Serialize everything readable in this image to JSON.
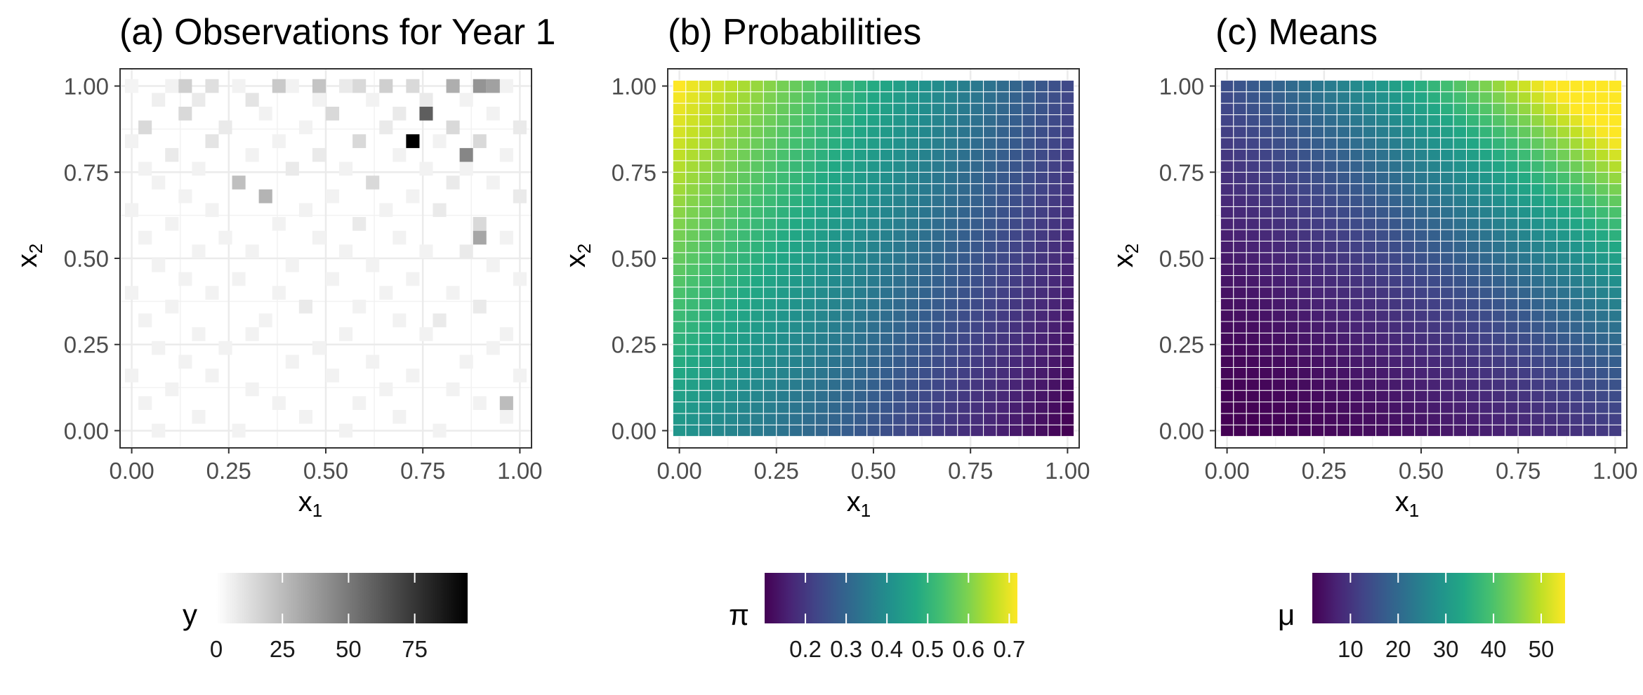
{
  "chart_data": [
    {
      "type": "heatmap",
      "title": "(a) Observations for Year 1",
      "xlabel": "x",
      "xlabel_sub": "1",
      "ylabel": "x",
      "ylabel_sub": "2",
      "xticks": [
        "0.00",
        "0.25",
        "0.50",
        "0.75",
        "1.00"
      ],
      "yticks": [
        "0.00",
        "0.25",
        "0.50",
        "0.75",
        "1.00"
      ],
      "xlim": [
        -0.03,
        1.03
      ],
      "ylim": [
        -0.05,
        1.05
      ],
      "grid": true,
      "legend": {
        "title": "y",
        "ticks": [
          "0",
          "25",
          "50",
          "75"
        ],
        "tick_values": [
          0,
          25,
          50,
          75
        ],
        "range": [
          0,
          95
        ],
        "colormap": "white-to-black",
        "position": "bottom"
      },
      "grid_size": 30,
      "cells": [
        [
          0,
          25,
          "a"
        ],
        [
          3,
          25,
          "f"
        ],
        [
          8,
          25,
          "f"
        ],
        [
          12,
          25,
          "f"
        ],
        [
          16,
          25,
          "e"
        ],
        [
          17,
          25,
          "d"
        ],
        [
          21,
          25,
          "d"
        ],
        [
          28,
          25,
          "f"
        ],
        [
          2,
          24,
          "b"
        ],
        [
          5,
          24,
          "e"
        ],
        [
          9,
          24,
          "c"
        ],
        [
          14,
          24,
          "f"
        ],
        [
          18,
          24,
          "f"
        ],
        [
          22,
          24,
          "e"
        ],
        [
          25,
          24,
          "f"
        ],
        [
          4,
          23,
          "d"
        ],
        [
          10,
          23,
          "f"
        ],
        [
          15,
          23,
          "d"
        ],
        [
          20,
          23,
          "e"
        ],
        [
          27,
          23,
          "f"
        ],
        [
          1,
          22,
          "d"
        ],
        [
          7,
          22,
          "e"
        ],
        [
          13,
          22,
          "f"
        ],
        [
          19,
          22,
          "e"
        ],
        [
          24,
          22,
          "d"
        ],
        [
          29,
          22,
          "e"
        ],
        [
          0,
          21,
          "f"
        ],
        [
          6,
          21,
          "c"
        ],
        [
          11,
          21,
          "f"
        ],
        [
          17,
          21,
          "d"
        ],
        [
          23,
          21,
          "f"
        ],
        [
          26,
          21,
          "d"
        ],
        [
          3,
          20,
          "e"
        ],
        [
          9,
          20,
          "f"
        ],
        [
          14,
          20,
          "e"
        ],
        [
          20,
          20,
          "f"
        ],
        [
          28,
          20,
          "f"
        ],
        [
          1,
          19,
          "f"
        ],
        [
          5,
          19,
          "f"
        ],
        [
          12,
          19,
          "e"
        ],
        [
          16,
          19,
          "f"
        ],
        [
          22,
          19,
          "f"
        ],
        [
          25,
          19,
          "f"
        ],
        [
          2,
          18,
          "f"
        ],
        [
          8,
          18,
          "f"
        ],
        [
          18,
          18,
          "d"
        ],
        [
          24,
          18,
          "e"
        ],
        [
          27,
          18,
          "f"
        ],
        [
          4,
          17,
          "f"
        ],
        [
          10,
          17,
          "d"
        ],
        [
          15,
          17,
          "f"
        ],
        [
          21,
          17,
          "f"
        ],
        [
          29,
          17,
          "e"
        ],
        [
          0,
          16,
          "f"
        ],
        [
          6,
          16,
          "f"
        ],
        [
          13,
          16,
          "f"
        ],
        [
          19,
          16,
          "f"
        ],
        [
          23,
          16,
          "e"
        ],
        [
          3,
          15,
          "f"
        ],
        [
          11,
          15,
          "f"
        ],
        [
          17,
          15,
          "e"
        ],
        [
          26,
          15,
          "d"
        ],
        [
          1,
          14,
          "f"
        ],
        [
          7,
          14,
          "f"
        ],
        [
          14,
          14,
          "f"
        ],
        [
          20,
          14,
          "f"
        ],
        [
          28,
          14,
          "f"
        ],
        [
          5,
          13,
          "f"
        ],
        [
          9,
          13,
          "f"
        ],
        [
          16,
          13,
          "f"
        ],
        [
          22,
          13,
          "f"
        ],
        [
          25,
          13,
          "e"
        ],
        [
          2,
          12,
          "f"
        ],
        [
          12,
          12,
          "f"
        ],
        [
          18,
          12,
          "f"
        ],
        [
          27,
          12,
          "f"
        ],
        [
          4,
          11,
          "f"
        ],
        [
          8,
          11,
          "f"
        ],
        [
          15,
          11,
          "f"
        ],
        [
          21,
          11,
          "f"
        ],
        [
          29,
          11,
          "f"
        ],
        [
          0,
          10,
          "f"
        ],
        [
          6,
          10,
          "f"
        ],
        [
          11,
          10,
          "f"
        ],
        [
          19,
          10,
          "f"
        ],
        [
          24,
          10,
          "f"
        ],
        [
          3,
          9,
          "f"
        ],
        [
          13,
          9,
          "e"
        ],
        [
          17,
          9,
          "f"
        ],
        [
          26,
          9,
          "e"
        ],
        [
          1,
          8,
          "f"
        ],
        [
          10,
          8,
          "f"
        ],
        [
          20,
          8,
          "f"
        ],
        [
          23,
          8,
          "e"
        ],
        [
          5,
          7,
          "f"
        ],
        [
          9,
          7,
          "f"
        ],
        [
          16,
          7,
          "f"
        ],
        [
          22,
          7,
          "f"
        ],
        [
          28,
          7,
          "f"
        ],
        [
          2,
          6,
          "f"
        ],
        [
          7,
          6,
          "f"
        ],
        [
          14,
          6,
          "f"
        ],
        [
          27,
          6,
          "f"
        ],
        [
          4,
          5,
          "f"
        ],
        [
          12,
          5,
          "f"
        ],
        [
          18,
          5,
          "f"
        ],
        [
          25,
          5,
          "f"
        ],
        [
          0,
          4,
          "f"
        ],
        [
          6,
          4,
          "f"
        ],
        [
          15,
          4,
          "f"
        ],
        [
          21,
          4,
          "f"
        ],
        [
          29,
          4,
          "f"
        ],
        [
          3,
          3,
          "f"
        ],
        [
          9,
          3,
          "f"
        ],
        [
          19,
          3,
          "f"
        ],
        [
          24,
          3,
          "f"
        ],
        [
          1,
          2,
          "f"
        ],
        [
          11,
          2,
          "f"
        ],
        [
          17,
          2,
          "f"
        ],
        [
          26,
          2,
          "f"
        ],
        [
          5,
          1,
          "f"
        ],
        [
          13,
          1,
          "f"
        ],
        [
          20,
          1,
          "f"
        ],
        [
          28,
          1,
          "f"
        ],
        [
          2,
          0,
          "f"
        ],
        [
          8,
          0,
          "f"
        ],
        [
          16,
          0,
          "f"
        ],
        [
          23,
          0,
          "f"
        ],
        [
          4,
          28,
          "g"
        ],
        [
          19,
          28,
          "g"
        ],
        [
          14,
          28,
          "h"
        ],
        [
          26,
          28,
          "i"
        ],
        [
          6,
          26,
          "j"
        ],
        [
          11,
          26,
          "k"
        ],
        [
          24,
          26,
          "l"
        ],
        [
          22,
          23,
          "m"
        ],
        [
          21,
          21,
          "n"
        ],
        [
          25,
          20,
          "o"
        ],
        [
          27,
          26,
          "p"
        ],
        [
          10,
          17,
          "q"
        ],
        [
          26,
          14,
          "r"
        ],
        [
          28,
          2,
          "s"
        ],
        [
          8,
          18,
          "t"
        ]
      ],
      "value_levels": {
        "a": 4,
        "b": 6,
        "c": 10,
        "d": 14,
        "e": 8,
        "f": 5,
        "g": 18,
        "h": 22,
        "i": 40,
        "j": 12,
        "k": 20,
        "l": 30,
        "m": 60,
        "n": 95,
        "o": 45,
        "p": 35,
        "q": 28,
        "r": 33,
        "s": 25,
        "t": 24
      }
    },
    {
      "type": "heatmap",
      "title": "(b) Probabilities",
      "xlabel": "x",
      "xlabel_sub": "1",
      "ylabel": "x",
      "ylabel_sub": "2",
      "xticks": [
        "0.00",
        "0.25",
        "0.50",
        "0.75",
        "1.00"
      ],
      "yticks": [
        "0.00",
        "0.25",
        "0.50",
        "0.75",
        "1.00"
      ],
      "grid": true,
      "grid_size": 31,
      "surface": {
        "min": 0.1,
        "max": 0.72,
        "description_values": {
          "corner_x0_y1": 0.72,
          "corner_x0_y0": 0.42,
          "corner_x1_y1": 0.25,
          "corner_x1_y0": 0.1
        }
      },
      "legend": {
        "title": "π",
        "ticks": [
          "0.2",
          "0.3",
          "0.4",
          "0.5",
          "0.6",
          "0.7"
        ],
        "tick_values": [
          0.2,
          0.3,
          0.4,
          0.5,
          0.6,
          0.7
        ],
        "range": [
          0.1,
          0.72
        ],
        "colormap": "viridis",
        "position": "bottom"
      }
    },
    {
      "type": "heatmap",
      "title": "(c) Means",
      "xlabel": "x",
      "xlabel_sub": "1",
      "ylabel": "x",
      "ylabel_sub": "2",
      "xticks": [
        "0.00",
        "0.25",
        "0.50",
        "0.75",
        "1.00"
      ],
      "yticks": [
        "0.00",
        "0.25",
        "0.50",
        "0.75",
        "1.00"
      ],
      "grid": true,
      "grid_size": 31,
      "surface": {
        "min": 2,
        "max": 55,
        "description_values": {
          "corner_x1_y1": 55,
          "corner_x0_y0": 2
        }
      },
      "legend": {
        "title": "μ",
        "ticks": [
          "10",
          "20",
          "30",
          "40",
          "50"
        ],
        "tick_values": [
          10,
          20,
          30,
          40,
          50
        ],
        "range": [
          2,
          55
        ],
        "colormap": "viridis",
        "position": "bottom"
      }
    }
  ]
}
